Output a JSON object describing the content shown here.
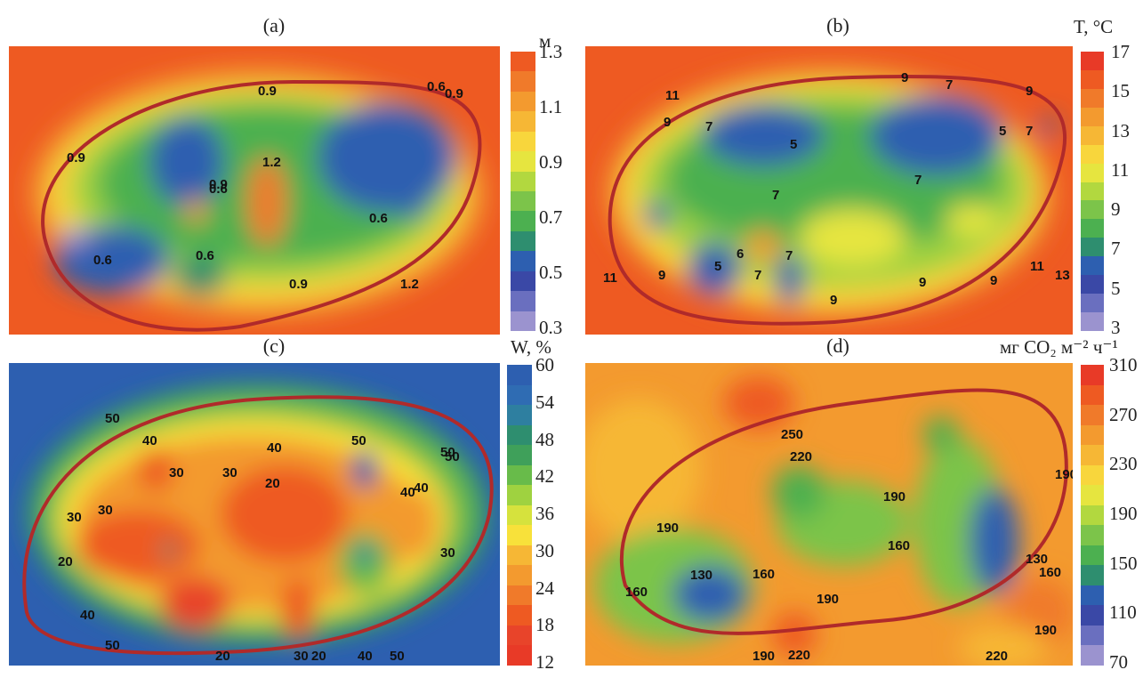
{
  "chart_data": [
    {
      "type": "heatmap",
      "panel_label": "(a)",
      "colorbar_unit": "м",
      "colorbar_ticks": [
        "1.3",
        "1.1",
        "0.9",
        "0.7",
        "0.5",
        "0.3"
      ],
      "colorbar_colors": [
        "#ee5a22",
        "#f07a2a",
        "#f39a2f",
        "#f6b735",
        "#f8d63c",
        "#e6e53f",
        "#b2d83f",
        "#7cc44a",
        "#4cb050",
        "#2e8e6f",
        "#2d5fb0",
        "#3a48a6",
        "#6a6fbf",
        "#9b93cf"
      ],
      "contour_labels": [
        "0.9",
        "0.9",
        "0.6",
        "0.6",
        "1.2",
        "0.9",
        "0.6",
        "0.6",
        "0.6",
        "0.9",
        "1.2",
        "0.9"
      ]
    },
    {
      "type": "heatmap",
      "panel_label": "(b)",
      "colorbar_unit": "T, °C",
      "colorbar_ticks": [
        "17",
        "15",
        "13",
        "11",
        "9",
        "7",
        "5",
        "3"
      ],
      "colorbar_colors": [
        "#e83a27",
        "#ee5a22",
        "#f07a2a",
        "#f39a2f",
        "#f6b735",
        "#f8d63c",
        "#e6e53f",
        "#b2d83f",
        "#7cc44a",
        "#4cb050",
        "#2e8e6f",
        "#2d5fb0",
        "#3a48a6",
        "#6a6fbf",
        "#9b93cf"
      ],
      "contour_labels": [
        "11",
        "9",
        "7",
        "9",
        "7",
        "9",
        "5",
        "5",
        "7",
        "7",
        "7",
        "9",
        "9",
        "7",
        "5",
        "6",
        "7",
        "11",
        "9",
        "9",
        "11",
        "13"
      ]
    },
    {
      "type": "heatmap",
      "panel_label": "(c)",
      "colorbar_unit": "W, %",
      "colorbar_ticks": [
        "60",
        "54",
        "48",
        "42",
        "36",
        "30",
        "24",
        "18",
        "12"
      ],
      "colorbar_colors": [
        "#2d5fb0",
        "#2f6cb3",
        "#2e7fa0",
        "#2e8e6f",
        "#3fa05a",
        "#68bb4a",
        "#9fd240",
        "#d6e23d",
        "#f8e13a",
        "#f6b735",
        "#f39a2f",
        "#f07a2a",
        "#ee5a22",
        "#e8442a",
        "#e83a27"
      ],
      "contour_labels": [
        "50",
        "40",
        "40",
        "50",
        "40",
        "50",
        "30",
        "30",
        "20",
        "30",
        "40",
        "50",
        "30",
        "20",
        "20",
        "30",
        "20",
        "40",
        "50",
        "30",
        "40",
        "50"
      ]
    },
    {
      "type": "heatmap",
      "panel_label": "(d)",
      "colorbar_unit": "мг CO₂ м⁻² ч⁻¹",
      "colorbar_ticks": [
        "310",
        "270",
        "230",
        "190",
        "150",
        "110",
        "70"
      ],
      "colorbar_colors": [
        "#e83a27",
        "#ee5a22",
        "#f07a2a",
        "#f39a2f",
        "#f6b735",
        "#f8d63c",
        "#e6e53f",
        "#b2d83f",
        "#7cc44a",
        "#4cb050",
        "#2e8e6f",
        "#2d5fb0",
        "#3a48a6",
        "#6a6fbf",
        "#9b93cf"
      ],
      "contour_labels": [
        "250",
        "220",
        "190",
        "190",
        "190",
        "160",
        "130",
        "160",
        "130",
        "160",
        "190",
        "220",
        "190",
        "160",
        "220",
        "190"
      ]
    }
  ]
}
